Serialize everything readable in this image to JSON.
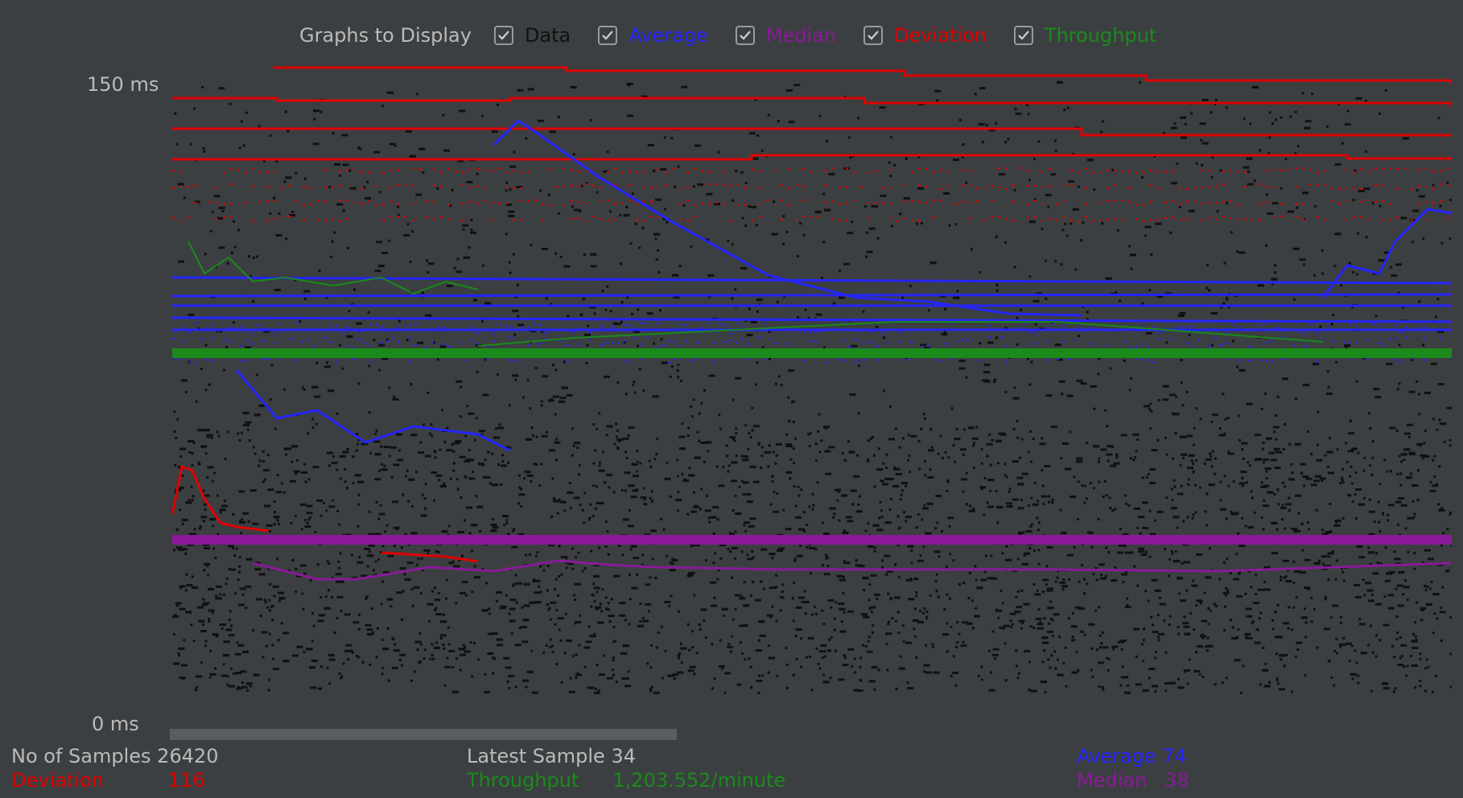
{
  "toolbar": {
    "title": "Graphs to Display",
    "options": [
      {
        "label": "Data",
        "checked": true,
        "color": "#111111"
      },
      {
        "label": "Average",
        "checked": true,
        "color": "#2424ff"
      },
      {
        "label": "Median",
        "checked": true,
        "color": "#8a1a9a"
      },
      {
        "label": "Deviation",
        "checked": true,
        "color": "#e00000"
      },
      {
        "label": "Throughput",
        "checked": true,
        "color": "#1a8a1a"
      }
    ]
  },
  "axis": {
    "top_label": "150  ms",
    "bottom_label": "0  ms",
    "y_max": 150,
    "y_min": 0
  },
  "stats": {
    "samples_label": "No of Samples",
    "samples_value": "26420",
    "latest_label": "Latest Sample",
    "latest_value": "34",
    "average_label": "Average",
    "average_value": "74",
    "deviation_label": "Deviation",
    "deviation_value": "116",
    "throughput_label": "Throughput",
    "throughput_value": "1,203.552/minute",
    "median_label": "Median",
    "median_value": "38"
  },
  "chart_data": {
    "type": "scatter",
    "title": "",
    "ylim": [
      0,
      150
    ],
    "series": [
      {
        "name": "Data",
        "color": "#111111"
      },
      {
        "name": "Average",
        "color": "#2424ff"
      },
      {
        "name": "Median",
        "color": "#8a1a9a"
      },
      {
        "name": "Deviation",
        "color": "#e00000"
      },
      {
        "name": "Throughput",
        "color": "#1a8a1a"
      }
    ]
  }
}
